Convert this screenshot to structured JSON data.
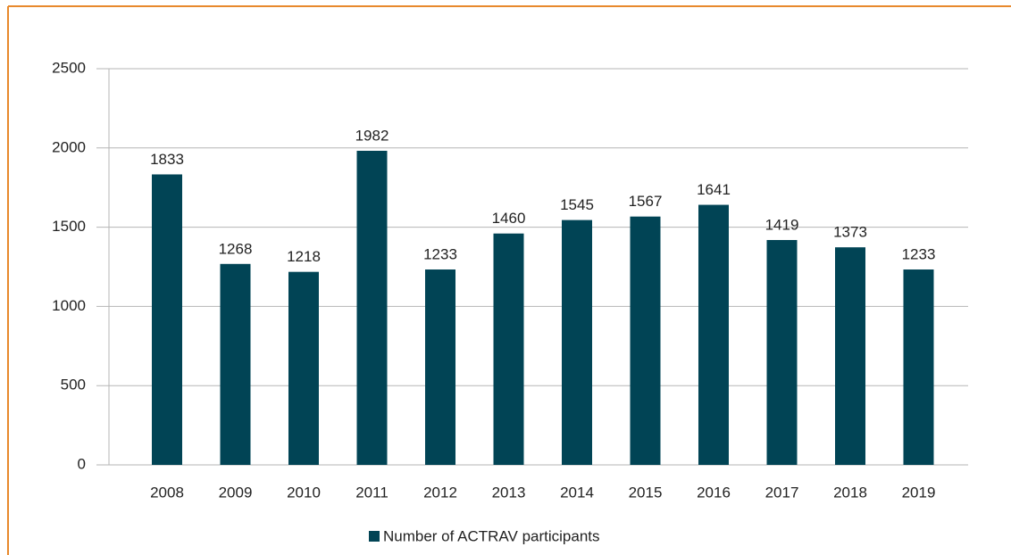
{
  "chart_data": {
    "type": "bar",
    "categories": [
      "2008",
      "2009",
      "2010",
      "2011",
      "2012",
      "2013",
      "2014",
      "2015",
      "2016",
      "2017",
      "2018",
      "2019"
    ],
    "series": [
      {
        "name": "Number of ACTRAV participants",
        "color": "#014455",
        "values": [
          1833,
          1268,
          1218,
          1982,
          1233,
          1460,
          1545,
          1567,
          1641,
          1419,
          1373,
          1233
        ]
      }
    ],
    "ylim": [
      0,
      2500
    ],
    "yticks": [
      0,
      500,
      1000,
      1500,
      2000,
      2500
    ],
    "grid": true,
    "legend": "bottom"
  }
}
